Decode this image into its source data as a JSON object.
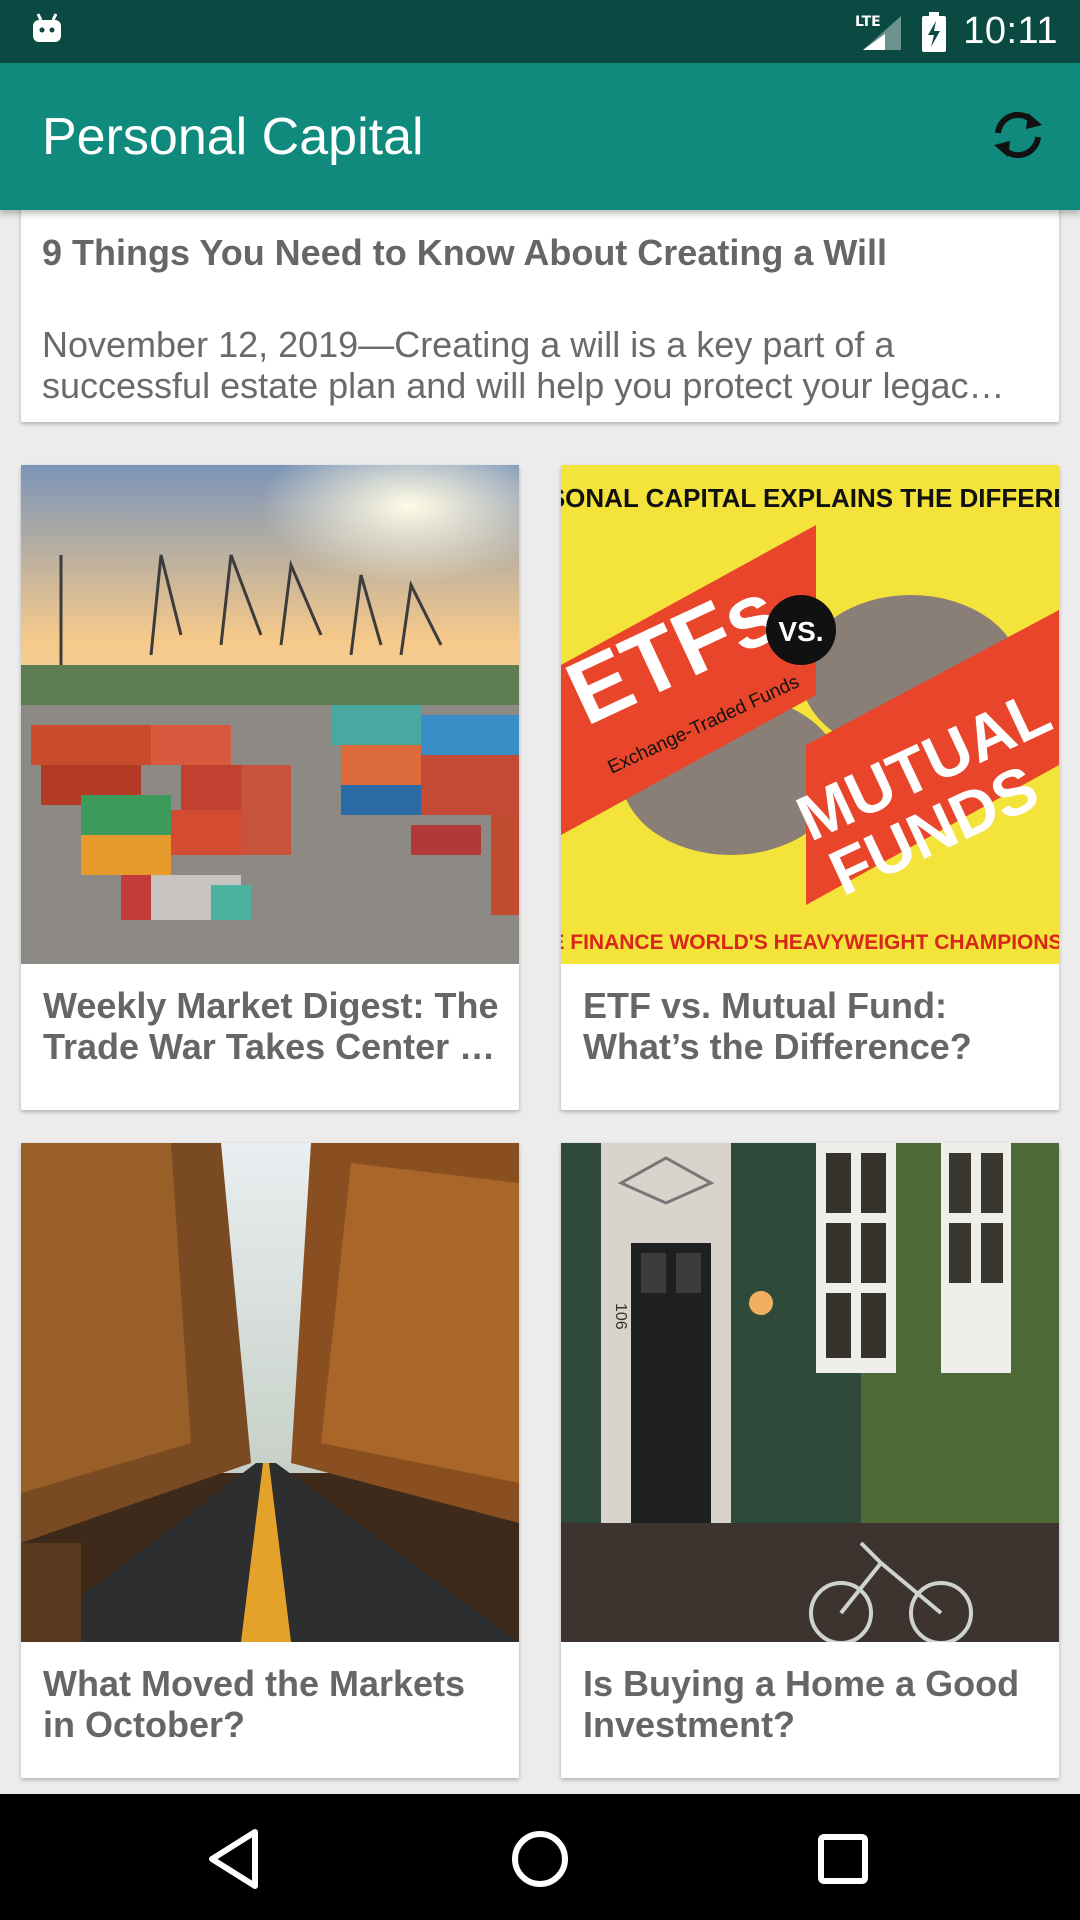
{
  "status": {
    "time": "10:11",
    "network": "LTE"
  },
  "app": {
    "title": "Personal Capital"
  },
  "articles": [
    {
      "title": "9 Things You Need to Know About Creating a Will",
      "excerpt_line1": "November 12, 2019—Creating a will is a key part of a",
      "excerpt_line2": "successful estate plan and will help you protect your legac…"
    },
    {
      "title_line1": "Weekly Market Digest: The",
      "title_line2": "Trade War Takes Center …"
    },
    {
      "title_line1": "ETF vs. Mutual Fund:",
      "title_line2": "What’s the Difference?",
      "image": {
        "header": "PERSONAL CAPITAL EXPLAINS THE DIFFERENCE",
        "etfs": "ETFs",
        "vs": "VS.",
        "subtitle": "Exchange-Traded Funds",
        "mutual": "MUTUAL",
        "funds": "FUNDS",
        "footer": "THE FINANCE WORLD'S HEAVYWEIGHT CHAMPIONSHIP"
      }
    },
    {
      "title_line1": "What Moved the Markets",
      "title_line2": "in October?"
    },
    {
      "title_line1": "Is Buying a Home a Good",
      "title_line2": "Investment?",
      "image": {
        "house_number": "106"
      }
    }
  ],
  "colors": {
    "status_bar": "#0a4a43",
    "app_bar": "#0f8a7c",
    "background": "#ececec"
  }
}
